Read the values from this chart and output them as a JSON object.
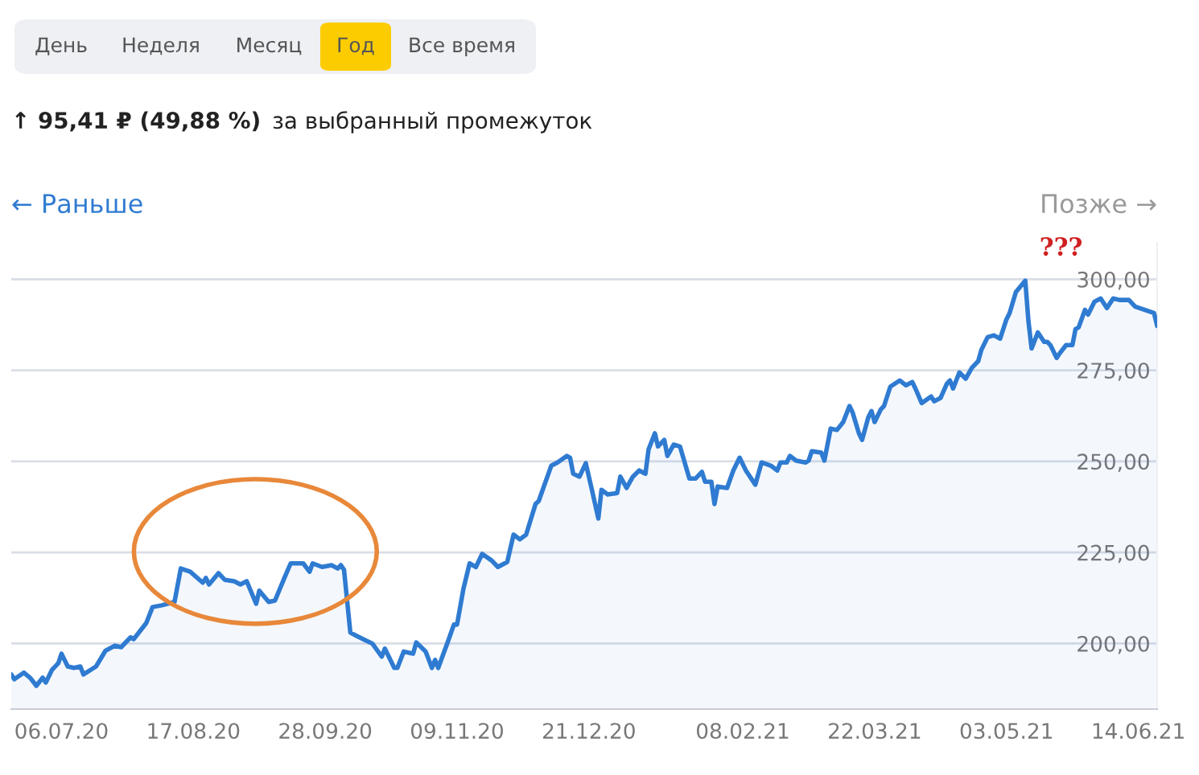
{
  "chart_data": {
    "type": "area",
    "annotations": [
      "День",
      "Неделя",
      "Месяц",
      "Год",
      "Все время",
      "↑ 95,41 ₽ (49,88 %)",
      "за выбранный промежуток",
      "← Раньше",
      "Позже →",
      {
        "text": "???",
        "x": "2021-05-09",
        "y": 299.6
      }
    ],
    "x": [
      "2020-06-20",
      "2020-06-21",
      "2020-06-24",
      "2020-06-26",
      "2020-06-28",
      "2020-06-30",
      "2020-07-01",
      "2020-07-03",
      "2020-07-05",
      "2020-07-06",
      "2020-07-08",
      "2020-07-10",
      "2020-07-12",
      "2020-07-13",
      "2020-07-17",
      "2020-07-20",
      "2020-07-23",
      "2020-07-25",
      "2020-07-28",
      "2020-07-29",
      "2020-07-31",
      "2020-08-02",
      "2020-08-04",
      "2020-08-07",
      "2020-08-11",
      "2020-08-13",
      "2020-08-16",
      "2020-08-20",
      "2020-08-21",
      "2020-08-22",
      "2020-08-25",
      "2020-08-27",
      "2020-08-30",
      "2020-09-01",
      "2020-09-03",
      "2020-09-06",
      "2020-09-07",
      "2020-09-10",
      "2020-09-12",
      "2020-09-15",
      "2020-09-17",
      "2020-09-21",
      "2020-09-23",
      "2020-09-24",
      "2020-09-27",
      "2020-09-30",
      "2020-10-02",
      "2020-10-03",
      "2020-10-04",
      "2020-10-06",
      "2020-10-08",
      "2020-10-11",
      "2020-10-13",
      "2020-10-16",
      "2020-10-17",
      "2020-10-20",
      "2020-10-21",
      "2020-10-23",
      "2020-10-26",
      "2020-10-27",
      "2020-10-30",
      "2020-11-01",
      "2020-11-02",
      "2020-11-03",
      "2020-11-06",
      "2020-11-08",
      "2020-11-09",
      "2020-11-11",
      "2020-11-13",
      "2020-11-15",
      "2020-11-17",
      "2020-11-20",
      "2020-11-22",
      "2020-11-25",
      "2020-11-27",
      "2020-11-29",
      "2020-12-01",
      "2020-12-04",
      "2020-12-05",
      "2020-12-09",
      "2020-12-11",
      "2020-12-14",
      "2020-12-15",
      "2020-12-16",
      "2020-12-18",
      "2020-12-20",
      "2020-12-22",
      "2020-12-24",
      "2020-12-25",
      "2020-12-27",
      "2020-12-30",
      "2020-12-31",
      "2021-01-02",
      "2021-01-04",
      "2021-01-06",
      "2021-01-08",
      "2021-01-09",
      "2021-01-11",
      "2021-01-12",
      "2021-01-14",
      "2021-01-15",
      "2021-01-17",
      "2021-01-19",
      "2021-01-22",
      "2021-01-24",
      "2021-01-26",
      "2021-01-27",
      "2021-01-29",
      "2021-01-30",
      "2021-01-31",
      "2021-02-03",
      "2021-02-05",
      "2021-02-07",
      "2021-02-09",
      "2021-02-12",
      "2021-02-14",
      "2021-02-17",
      "2021-02-19",
      "2021-02-20",
      "2021-02-22",
      "2021-02-23",
      "2021-02-25",
      "2021-02-28",
      "2021-03-01",
      "2021-03-02",
      "2021-03-05",
      "2021-03-06",
      "2021-03-08",
      "2021-03-10",
      "2021-03-12",
      "2021-03-14",
      "2021-03-15",
      "2021-03-17",
      "2021-03-18",
      "2021-03-20",
      "2021-03-21",
      "2021-03-22",
      "2021-03-24",
      "2021-03-25",
      "2021-03-27",
      "2021-03-30",
      "2021-04-01",
      "2021-04-03",
      "2021-04-04",
      "2021-04-06",
      "2021-04-09",
      "2021-04-10",
      "2021-04-12",
      "2021-04-14",
      "2021-04-15",
      "2021-04-16",
      "2021-04-18",
      "2021-04-20",
      "2021-04-22",
      "2021-04-24",
      "2021-04-25",
      "2021-04-27",
      "2021-04-29",
      "2021-05-01",
      "2021-05-03",
      "2021-05-04",
      "2021-05-06",
      "2021-05-09",
      "2021-05-10",
      "2021-05-11",
      "2021-05-13",
      "2021-05-15",
      "2021-05-16",
      "2021-05-17",
      "2021-05-19",
      "2021-05-20",
      "2021-05-22",
      "2021-05-24",
      "2021-05-25",
      "2021-05-26",
      "2021-05-28",
      "2021-05-29",
      "2021-05-31",
      "2021-06-02",
      "2021-06-04",
      "2021-06-06",
      "2021-06-08",
      "2021-06-11",
      "2021-06-13",
      "2021-06-16",
      "2021-06-19",
      "2021-06-20"
    ],
    "series": [
      {
        "color": "#2f7bd1",
        "values": [
          191.5,
          190.2,
          192,
          190.6,
          188.4,
          190.6,
          189.3,
          192.8,
          194.6,
          197.2,
          193.7,
          193.3,
          193.7,
          191.5,
          193.7,
          198,
          199.4,
          199,
          201.7,
          201.2,
          203.4,
          205.6,
          210,
          210.5,
          211.4,
          220.6,
          219.7,
          216.7,
          218,
          216.2,
          219.3,
          217.5,
          217.1,
          216.2,
          217.1,
          210.9,
          214.5,
          211.4,
          211.8,
          218,
          222,
          222,
          219.7,
          222,
          221,
          221.5,
          220.6,
          221.5,
          220.2,
          203,
          202.1,
          200.8,
          200,
          196.4,
          198.6,
          193.3,
          193.3,
          197.8,
          197.2,
          200.3,
          197.8,
          193.3,
          195.5,
          193.3,
          200.3,
          205.2,
          205.2,
          214.9,
          222,
          221,
          224.6,
          222.8,
          221,
          222.4,
          229.9,
          228.6,
          229.9,
          238.3,
          239.1,
          248.8,
          249.7,
          251.5,
          251,
          246.6,
          245.8,
          249.5,
          242,
          234.3,
          242.2,
          240.9,
          241.3,
          245.8,
          242.7,
          245.8,
          247.5,
          246.6,
          253.3,
          257.7,
          254.1,
          255.9,
          251.5,
          254.6,
          254.1,
          245.3,
          245.3,
          247.1,
          244.4,
          244.4,
          238.3,
          243.1,
          242.7,
          247.5,
          251,
          247.5,
          243.6,
          249.7,
          248.8,
          247.5,
          249.7,
          249.7,
          251.5,
          250.2,
          249.7,
          250.2,
          252.8,
          252.4,
          250.2,
          259,
          258.6,
          260.8,
          265.2,
          263.4,
          257.7,
          255.9,
          262.1,
          263.8,
          260.8,
          264.3,
          265.2,
          270.5,
          272.2,
          270.9,
          271.8,
          270,
          266,
          267.8,
          266.5,
          267.4,
          271.3,
          272.2,
          270,
          274.4,
          272.7,
          275.7,
          277.5,
          280.6,
          284.1,
          284.6,
          283.7,
          289,
          290.7,
          296.5,
          299.6,
          288.5,
          281,
          285.4,
          282.8,
          282.8,
          281.9,
          278.4,
          279.7,
          281.9,
          281.9,
          286.3,
          286.8,
          291.6,
          290.3,
          293.8,
          294.7,
          292.1,
          294.7,
          294.3,
          294.3,
          292.5,
          291.6,
          290.7,
          287.2
        ]
      }
    ],
    "xlim": [
      "2020-06-20",
      "2021-06-20"
    ],
    "xticks": [
      {
        "value": "2020-07-06",
        "label": "06.07.20"
      },
      {
        "value": "2020-08-17",
        "label": "17.08.20"
      },
      {
        "value": "2020-09-28",
        "label": "28.09.20"
      },
      {
        "value": "2020-11-09",
        "label": "09.11.20"
      },
      {
        "value": "2020-12-21",
        "label": "21.12.20"
      },
      {
        "value": "2021-02-08",
        "label": "08.02.21"
      },
      {
        "value": "2021-03-22",
        "label": "22.03.21"
      },
      {
        "value": "2021-05-03",
        "label": "03.05.21"
      },
      {
        "value": "2021-06-14",
        "label": "14.06.21"
      }
    ],
    "ylim": [
      182,
      310
    ],
    "yticks": [
      {
        "value": 200,
        "label": "200,00"
      },
      {
        "value": 225,
        "label": "225,00"
      },
      {
        "value": 250,
        "label": "250,00"
      },
      {
        "value": 275,
        "label": "275,00"
      },
      {
        "value": 300,
        "label": "300,00"
      }
    ],
    "grid": "y",
    "marker": "none",
    "line_style": "solid"
  }
}
